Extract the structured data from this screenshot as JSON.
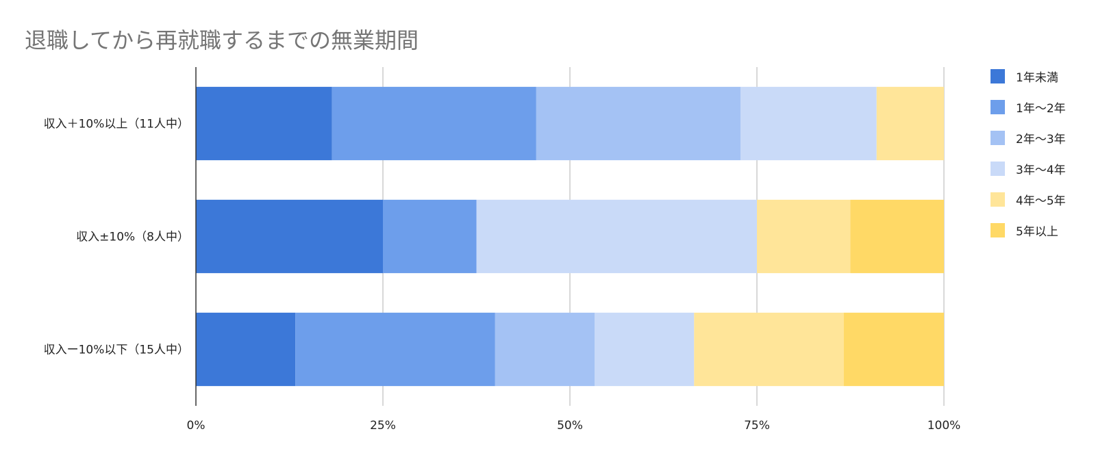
{
  "chart_data": {
    "type": "bar",
    "orientation": "horizontal",
    "stacked": "percent",
    "title": "退職してから再就職するまでの無業期間",
    "categories": [
      "収入＋10%以上（11人中）",
      "収入±10%（8人中）",
      "収入ー10%以下（15人中）"
    ],
    "series": [
      {
        "name": "1年未満",
        "color": "#3c78d8",
        "values": [
          18.2,
          25.0,
          13.3
        ]
      },
      {
        "name": "1年〜2年",
        "color": "#6d9eeb",
        "values": [
          27.3,
          12.5,
          26.7
        ]
      },
      {
        "name": "2年〜3年",
        "color": "#a4c2f4",
        "values": [
          27.3,
          0,
          13.3
        ]
      },
      {
        "name": "3年〜4年",
        "color": "#c9daf8",
        "values": [
          18.2,
          37.5,
          13.3
        ]
      },
      {
        "name": "4年〜5年",
        "color": "#ffe599",
        "values": [
          9.0,
          12.5,
          20.0
        ]
      },
      {
        "name": "5年以上",
        "color": "#ffd966",
        "values": [
          0,
          12.5,
          13.4
        ]
      }
    ],
    "xlim": [
      0,
      100
    ],
    "x_ticks": [
      "0%",
      "25%",
      "50%",
      "75%",
      "100%"
    ],
    "grid": true,
    "legend_position": "right"
  }
}
